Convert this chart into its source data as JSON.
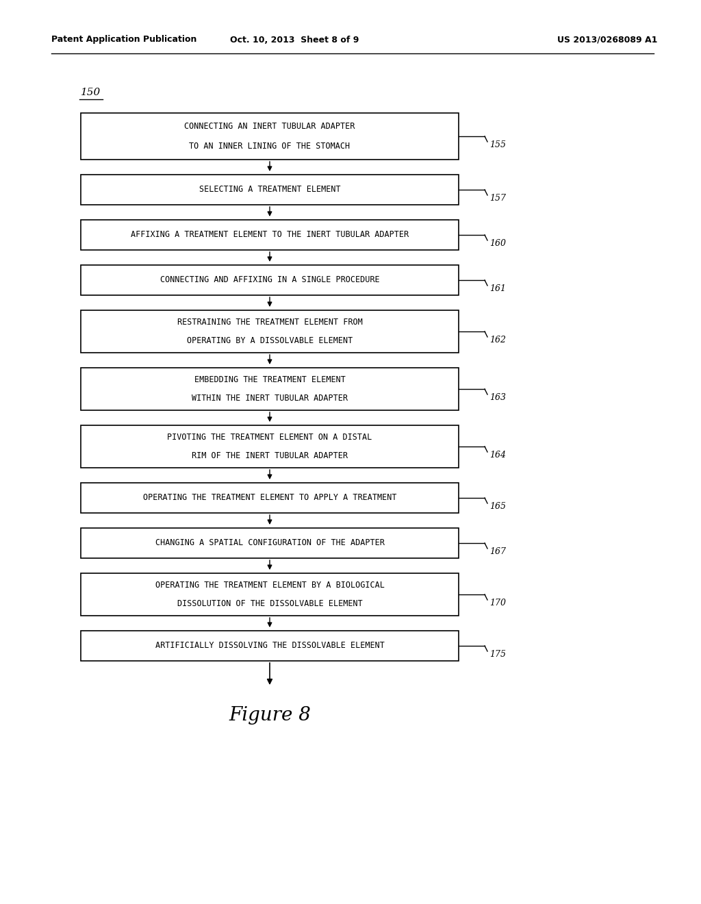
{
  "header_left": "Patent Application Publication",
  "header_mid": "Oct. 10, 2013  Sheet 8 of 9",
  "header_right": "US 2013/0268089 A1",
  "figure_label": "Figure 8",
  "flow_label": "150",
  "background_color": "#ffffff",
  "box_color": "#ffffff",
  "box_edge_color": "#000000",
  "text_color": "#000000",
  "boxes": [
    {
      "lines": [
        "CONNECTING AN INERT TUBULAR ADAPTER",
        "TO AN INNER LINING OF THE STOMACH"
      ],
      "label": "155",
      "nlines": 2
    },
    {
      "lines": [
        "SELECTING A TREATMENT ELEMENT"
      ],
      "label": "157",
      "nlines": 1
    },
    {
      "lines": [
        "AFFIXING A TREATMENT ELEMENT TO THE INERT TUBULAR ADAPTER"
      ],
      "label": "160",
      "nlines": 1
    },
    {
      "lines": [
        "CONNECTING AND AFFIXING IN A SINGLE PROCEDURE"
      ],
      "label": "161",
      "nlines": 1
    },
    {
      "lines": [
        "RESTRAINING THE TREATMENT ELEMENT FROM",
        "OPERATING BY A DISSOLVABLE ELEMENT"
      ],
      "label": "162",
      "nlines": 2
    },
    {
      "lines": [
        "EMBEDDING THE TREATMENT ELEMENT",
        "WITHIN THE INERT TUBULAR ADAPTER"
      ],
      "label": "163",
      "nlines": 2
    },
    {
      "lines": [
        "PIVOTING THE TREATMENT ELEMENT ON A DISTAL",
        "RIM OF THE INERT TUBULAR ADAPTER"
      ],
      "label": "164",
      "nlines": 2
    },
    {
      "lines": [
        "OPERATING THE TREATMENT ELEMENT TO APPLY A TREATMENT"
      ],
      "label": "165",
      "nlines": 1
    },
    {
      "lines": [
        "CHANGING A SPATIAL CONFIGURATION OF THE ADAPTER"
      ],
      "label": "167",
      "nlines": 1
    },
    {
      "lines": [
        "OPERATING THE TREATMENT ELEMENT BY A BIOLOGICAL",
        "DISSOLUTION OF THE DISSOLVABLE ELEMENT"
      ],
      "label": "170",
      "nlines": 2
    },
    {
      "lines": [
        "ARTIFICIALLY DISSOLVING THE DISSOLVABLE ELEMENT"
      ],
      "label": "175",
      "nlines": 1
    }
  ]
}
